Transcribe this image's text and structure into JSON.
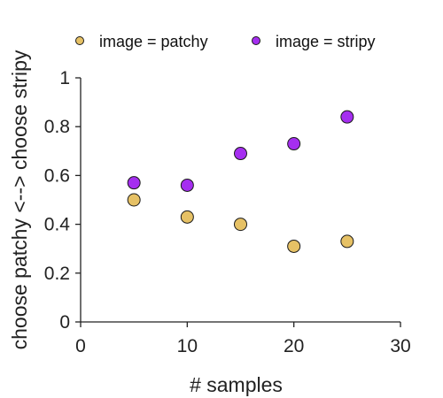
{
  "chart_data": {
    "type": "scatter",
    "xlabel": "# samples",
    "ylabel": "choose patchy <--> choose stripy",
    "xlim": [
      0,
      30
    ],
    "ylim": [
      0,
      1
    ],
    "xticks": [
      0,
      10,
      20,
      30
    ],
    "yticks": [
      0,
      0.2,
      0.4,
      0.6,
      0.8,
      1
    ],
    "ytick_labels": [
      "0",
      "0.2",
      "0.4",
      "0.6",
      "0.8",
      "1"
    ],
    "xtick_labels": [
      "0",
      "10",
      "20",
      "30"
    ],
    "grid": false,
    "legend_position": "top",
    "series": [
      {
        "name": "image = patchy",
        "color": "#e6c165",
        "x": [
          5,
          10,
          15,
          20,
          25
        ],
        "y": [
          0.5,
          0.43,
          0.4,
          0.31,
          0.33
        ]
      },
      {
        "name": "image = stripy",
        "color": "#a52ef0",
        "x": [
          5,
          10,
          15,
          20,
          25
        ],
        "y": [
          0.57,
          0.56,
          0.69,
          0.73,
          0.84
        ]
      }
    ]
  }
}
